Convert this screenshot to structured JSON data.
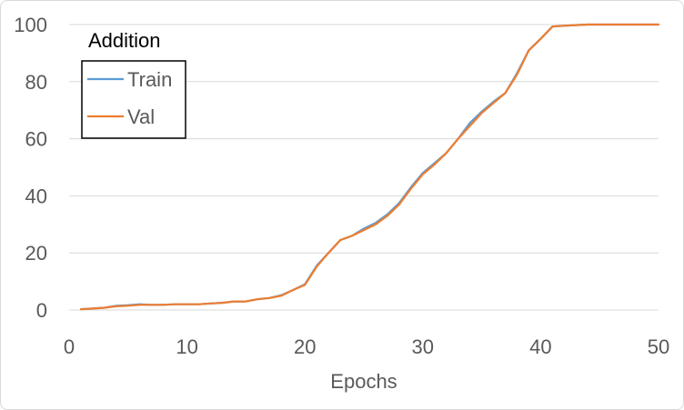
{
  "chart_data": {
    "type": "line",
    "title": "Addition",
    "xlabel": "Epochs",
    "ylabel": "",
    "xlim": [
      0,
      50
    ],
    "ylim": [
      0,
      100
    ],
    "xticks": [
      0,
      10,
      20,
      30,
      40,
      50
    ],
    "yticks": [
      0,
      20,
      40,
      60,
      80,
      100
    ],
    "grid": "horizontal",
    "legend_position": "top-left",
    "x": [
      1,
      2,
      3,
      4,
      5,
      6,
      7,
      8,
      9,
      10,
      11,
      12,
      13,
      14,
      15,
      16,
      17,
      18,
      19,
      20,
      21,
      22,
      23,
      24,
      25,
      26,
      27,
      28,
      29,
      30,
      31,
      32,
      33,
      34,
      35,
      36,
      37,
      38,
      39,
      40,
      41,
      42,
      43,
      44,
      45,
      46,
      47,
      48,
      49,
      50
    ],
    "series": [
      {
        "name": "Train",
        "color": "#5b9bd5",
        "values": [
          0.3,
          0.5,
          0.8,
          1.5,
          1.7,
          2.0,
          1.8,
          1.8,
          2.0,
          2.0,
          2.0,
          2.3,
          2.5,
          3.0,
          3.0,
          3.8,
          4.2,
          5.2,
          7.0,
          9.0,
          15.5,
          20.0,
          24.5,
          26.0,
          28.5,
          30.5,
          33.5,
          37.5,
          43.0,
          48.0,
          51.5,
          55.0,
          60.0,
          65.5,
          69.5,
          73.0,
          76.0,
          83.0,
          91.0,
          95.0,
          99.3,
          99.6,
          99.8,
          100.0,
          100.0,
          100.0,
          100.0,
          100.0,
          100.0,
          100.0
        ]
      },
      {
        "name": "Val",
        "color": "#ed7d31",
        "values": [
          0.3,
          0.5,
          0.8,
          1.3,
          1.5,
          1.8,
          1.8,
          1.8,
          2.0,
          2.0,
          2.0,
          2.3,
          2.5,
          3.0,
          3.0,
          3.8,
          4.2,
          5.0,
          7.0,
          8.8,
          15.2,
          20.0,
          24.5,
          26.0,
          28.0,
          30.0,
          33.0,
          37.0,
          42.5,
          47.5,
          51.0,
          55.0,
          60.0,
          64.5,
          69.0,
          72.5,
          76.0,
          82.5,
          91.0,
          95.0,
          99.3,
          99.6,
          99.8,
          100.0,
          100.0,
          100.0,
          100.0,
          100.0,
          100.0,
          100.0
        ]
      }
    ]
  }
}
